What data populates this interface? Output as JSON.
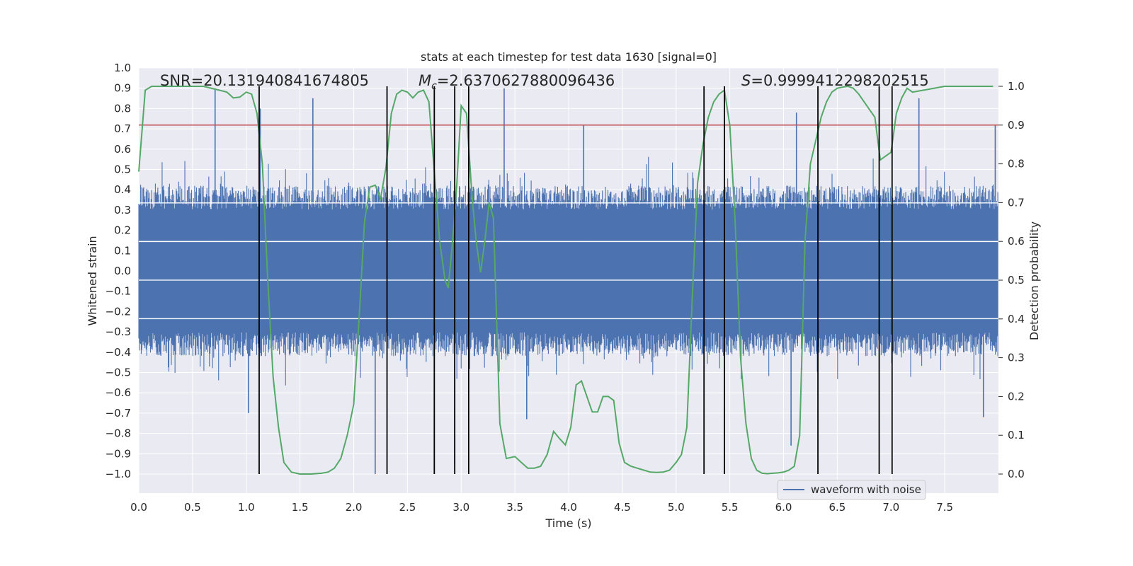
{
  "chart_data": {
    "type": "line",
    "title": "stats at each timestep for test data 1630 [signal=0]",
    "xlabel": "Time (s)",
    "ylabel": "Whitened strain",
    "y2label": "Detection probability",
    "xlim": [
      0.0,
      8.0
    ],
    "ylim": [
      -1.0,
      1.0
    ],
    "y2lim": [
      0.0,
      1.0
    ],
    "x_ticks": [
      "0.0",
      "0.5",
      "1.0",
      "1.5",
      "2.0",
      "2.5",
      "3.0",
      "3.5",
      "4.0",
      "4.5",
      "5.0",
      "5.5",
      "6.0",
      "6.5",
      "7.0",
      "7.5"
    ],
    "y_ticks": [
      "1.0",
      "0.9",
      "0.8",
      "0.7",
      "0.6",
      "0.5",
      "0.4",
      "0.3",
      "0.2",
      "0.1",
      "0.0",
      "−0.1",
      "−0.2",
      "−0.3",
      "−0.4",
      "−0.5",
      "−0.6",
      "−0.7",
      "−0.8",
      "−0.9",
      "−1.0"
    ],
    "y2_ticks": [
      "1.0",
      "0.9",
      "0.8",
      "0.7",
      "0.6",
      "0.5",
      "0.4",
      "0.3",
      "0.2",
      "0.1",
      "0.0"
    ],
    "annotations": {
      "snr": "SNR=20.131940841674805",
      "mc_symbol": "M",
      "mc_sub": "c",
      "mc_value": "=2.6370627880096436",
      "s_symbol": "S",
      "s_value": "=0.9999412298202515"
    },
    "threshold": {
      "value": 0.9,
      "axis": "y2"
    },
    "vertical_lines": [
      1.12,
      2.31,
      2.75,
      2.94,
      3.07,
      5.26,
      5.45,
      6.32,
      6.89,
      7.01
    ],
    "series": [
      {
        "name": "waveform with noise",
        "axis": "y",
        "kind": "noise",
        "envelope": 0.42,
        "spikes": [
          {
            "t": 0.71,
            "v": 0.9
          },
          {
            "t": 1.13,
            "v": 0.8
          },
          {
            "t": 1.62,
            "v": 0.85
          },
          {
            "t": 3.4,
            "v": 0.9
          },
          {
            "t": 4.14,
            "v": 0.72
          },
          {
            "t": 6.12,
            "v": 0.78
          },
          {
            "t": 7.26,
            "v": 0.85
          },
          {
            "t": 7.97,
            "v": 0.72
          },
          {
            "t": 2.2,
            "v": -1.0
          },
          {
            "t": 2.94,
            "v": -0.95
          },
          {
            "t": 6.07,
            "v": -0.86
          },
          {
            "t": 3.61,
            "v": -0.73
          },
          {
            "t": 1.02,
            "v": -0.7
          },
          {
            "t": 7.86,
            "v": -0.72
          }
        ]
      },
      {
        "name": "detection probability",
        "axis": "y2",
        "x": [
          0.0,
          0.06,
          0.12,
          0.25,
          0.4,
          0.6,
          0.75,
          0.82,
          0.88,
          0.94,
          1.0,
          1.05,
          1.1,
          1.15,
          1.2,
          1.25,
          1.3,
          1.35,
          1.42,
          1.5,
          1.6,
          1.7,
          1.76,
          1.82,
          1.88,
          1.94,
          2.0,
          2.05,
          2.1,
          2.15,
          2.2,
          2.25,
          2.3,
          2.35,
          2.4,
          2.45,
          2.5,
          2.55,
          2.6,
          2.65,
          2.7,
          2.75,
          2.8,
          2.85,
          2.88,
          2.92,
          2.96,
          3.0,
          3.05,
          3.1,
          3.14,
          3.18,
          3.22,
          3.26,
          3.3,
          3.36,
          3.42,
          3.5,
          3.56,
          3.62,
          3.68,
          3.74,
          3.8,
          3.86,
          3.92,
          3.97,
          4.02,
          4.07,
          4.12,
          4.17,
          4.22,
          4.27,
          4.32,
          4.37,
          4.42,
          4.47,
          4.52,
          4.58,
          4.64,
          4.7,
          4.76,
          4.82,
          4.88,
          4.94,
          5.0,
          5.05,
          5.1,
          5.15,
          5.2,
          5.25,
          5.3,
          5.35,
          5.4,
          5.45,
          5.5,
          5.55,
          5.6,
          5.65,
          5.7,
          5.75,
          5.8,
          5.85,
          5.9,
          5.95,
          6.0,
          6.05,
          6.1,
          6.15,
          6.2,
          6.25,
          6.3,
          6.35,
          6.4,
          6.45,
          6.5,
          6.55,
          6.6,
          6.65,
          6.7,
          6.75,
          6.8,
          6.85,
          6.9,
          6.95,
          7.0,
          7.05,
          7.1,
          7.15,
          7.2,
          7.3,
          7.5,
          7.7,
          7.95
        ],
        "y": [
          0.78,
          0.99,
          1.0,
          1.0,
          1.0,
          1.0,
          0.99,
          0.985,
          0.97,
          0.972,
          0.985,
          0.98,
          0.93,
          0.8,
          0.5,
          0.25,
          0.12,
          0.03,
          0.005,
          0.0,
          0.0,
          0.002,
          0.005,
          0.015,
          0.04,
          0.1,
          0.18,
          0.4,
          0.65,
          0.74,
          0.745,
          0.71,
          0.79,
          0.93,
          0.98,
          0.99,
          0.985,
          0.97,
          0.985,
          0.99,
          0.96,
          0.78,
          0.6,
          0.5,
          0.48,
          0.6,
          0.75,
          0.95,
          0.93,
          0.72,
          0.6,
          0.52,
          0.6,
          0.7,
          0.66,
          0.13,
          0.04,
          0.045,
          0.03,
          0.015,
          0.015,
          0.02,
          0.05,
          0.11,
          0.09,
          0.075,
          0.12,
          0.23,
          0.24,
          0.2,
          0.16,
          0.16,
          0.2,
          0.2,
          0.19,
          0.08,
          0.03,
          0.02,
          0.015,
          0.01,
          0.005,
          0.004,
          0.005,
          0.01,
          0.03,
          0.05,
          0.12,
          0.45,
          0.75,
          0.85,
          0.92,
          0.96,
          0.98,
          0.99,
          0.9,
          0.65,
          0.3,
          0.13,
          0.04,
          0.01,
          0.002,
          0.001,
          0.002,
          0.003,
          0.005,
          0.01,
          0.02,
          0.1,
          0.6,
          0.8,
          0.86,
          0.92,
          0.96,
          0.985,
          0.995,
          0.998,
          1.0,
          0.995,
          0.98,
          0.96,
          0.94,
          0.92,
          0.81,
          0.82,
          0.83,
          0.93,
          0.97,
          0.995,
          0.985,
          0.99,
          1.0,
          1.0,
          1.0
        ]
      },
      {
        "name": "feature line 1",
        "axis": "y",
        "kind": "hline",
        "value": 0.335
      },
      {
        "name": "feature line 2",
        "axis": "y",
        "kind": "hline",
        "value": 0.145
      },
      {
        "name": "feature line 3",
        "axis": "y",
        "kind": "hline",
        "value": -0.045
      },
      {
        "name": "feature line 4",
        "axis": "y",
        "kind": "hline",
        "value": -0.235
      }
    ],
    "legend": {
      "label": "waveform with noise",
      "position": "lower-right"
    },
    "grid": true,
    "colors": {
      "background": "#eaeaf2",
      "grid": "#ffffff",
      "waveform": "#4c72b0",
      "probability": "#55a868",
      "threshold": "#c44e52",
      "vlines": "#000000"
    }
  }
}
